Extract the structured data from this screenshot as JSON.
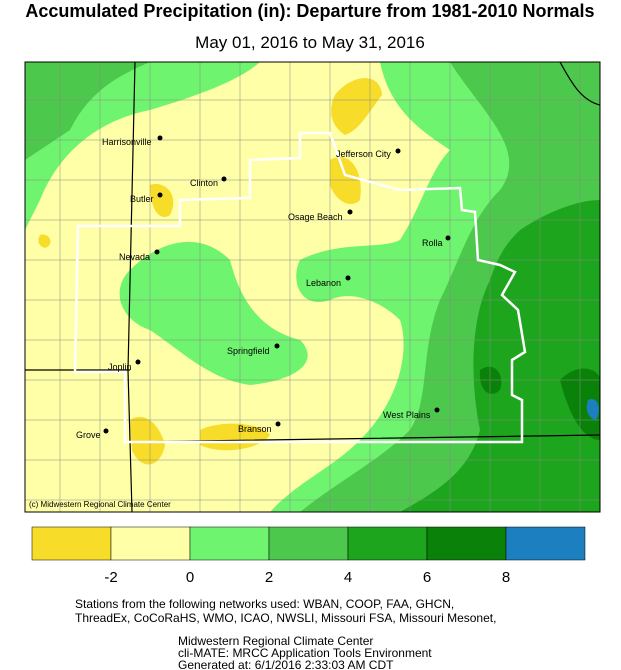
{
  "header": {
    "title": "Accumulated Precipitation (in): Departure from 1981-2010 Normals",
    "subtitle": "May 01, 2016 to May 31, 2016"
  },
  "map": {
    "credit": "(c) Midwestern Regional Climate Center",
    "cities": [
      "Harrisonville",
      "Jefferson City",
      "Clinton",
      "Butler",
      "Osage Beach",
      "Rolla",
      "Nevada",
      "Lebanon",
      "Springfield",
      "Joplin",
      "West Plains",
      "Branson",
      "Grove"
    ]
  },
  "legend": {
    "colors": [
      "#f7dc2a",
      "#ffffa8",
      "#6ff46f",
      "#4cc84c",
      "#1ea51e",
      "#0a820a",
      "#1b7fc0"
    ],
    "ticks": [
      -2,
      0,
      2,
      4,
      6,
      8
    ]
  },
  "footer": {
    "lines": [
      "Stations from the following networks used: WBAN, COOP, FAA, GHCN,",
      "ThreadEx, CoCoRaHS, WMO, ICAO, NWSLI, Missouri FSA, Missouri Mesonet,",
      "Midwestern Regional Climate Center",
      "cli-MATE: MRCC Application Tools Environment",
      "Generated at: 6/1/2016 2:33:03 AM CDT"
    ]
  }
}
